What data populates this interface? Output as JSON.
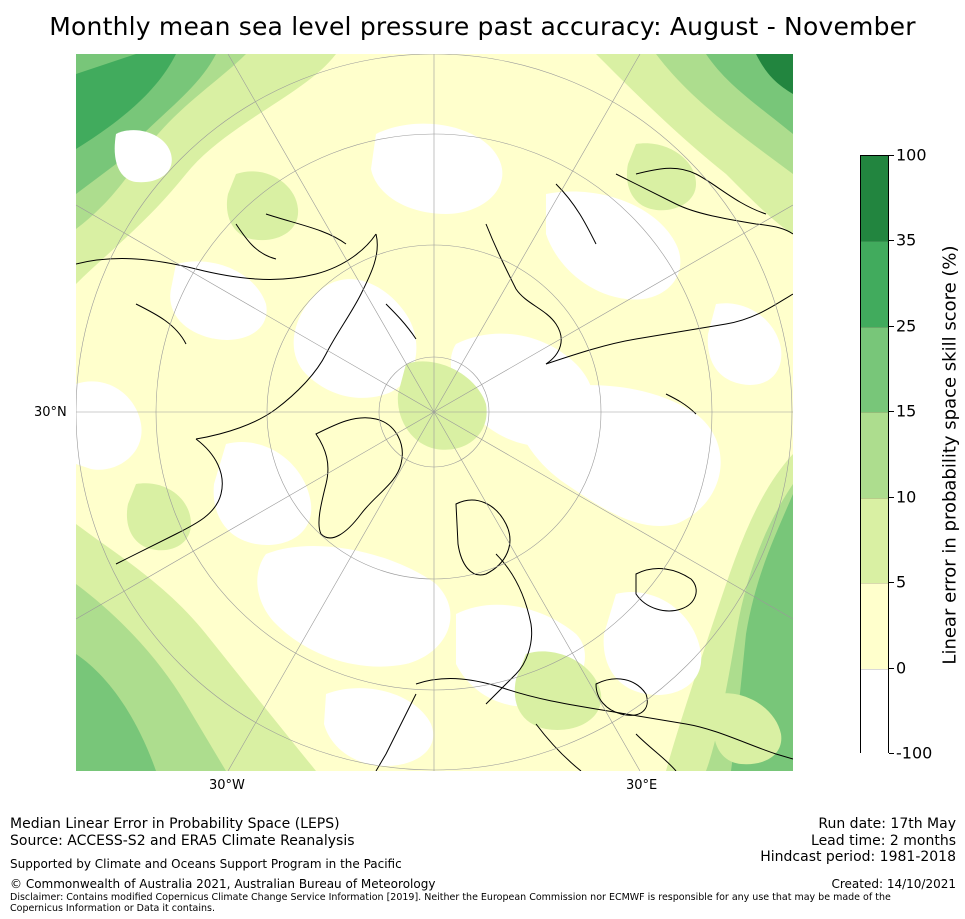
{
  "title": "Monthly mean sea level pressure past accuracy: August - November",
  "map": {
    "labels": {
      "lat": "30°N",
      "lon_w": "30°W",
      "lon_e": "30°E"
    }
  },
  "colorbar": {
    "title": "Linear error in probability space skill score (%)",
    "ticks": [
      "100",
      "35",
      "25",
      "15",
      "10",
      "5",
      "0",
      "-100"
    ],
    "colors": [
      "#22853f",
      "#41ab5d",
      "#78c679",
      "#addd8e",
      "#d9f0a3",
      "#ffffcc",
      "#ffffff"
    ]
  },
  "footer": {
    "left_line1": "Median Linear Error in Probability Space (LEPS)",
    "left_line2": "Source: ACCESS-S2 and ERA5 Climate Reanalysis",
    "supported": "Supported by Climate and Oceans Support Program in the Pacific",
    "copyright": "© Commonwealth of Australia 2021, Australian Bureau of Meteorology",
    "disclaimer": "Disclaimer: Contains modified Copernicus Climate Change Service Information [2019]. Neither the European Commission nor ECMWF is responsible for any use that may be made of the Copernicus Information or Data it contains.",
    "run_date": "Run date: 17th May",
    "lead_time": "Lead time: 2 months",
    "hindcast": "Hindcast period: 1981-2018",
    "created": "Created: 14/10/2021"
  }
}
